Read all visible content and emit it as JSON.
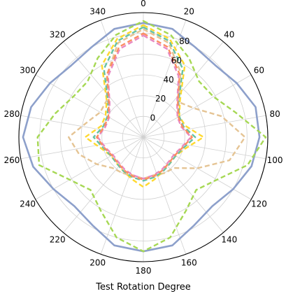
{
  "chart_data": {
    "type": "polar-line",
    "title": "",
    "xlabel": "Test Rotation Degree",
    "ylabel": "",
    "theta_unit": "degrees",
    "theta_zero_location": "top",
    "theta_direction": "clockwise",
    "theta_ticks": [
      0,
      20,
      40,
      60,
      80,
      100,
      120,
      140,
      160,
      180,
      200,
      220,
      240,
      260,
      280,
      300,
      320,
      340
    ],
    "r_ticks": [
      0,
      20,
      40,
      60,
      80
    ],
    "r_tick_labels": [
      "0",
      "20",
      "40",
      "60",
      "80"
    ],
    "rlim": [
      -20,
      100
    ],
    "grid": true,
    "theta": [
      0,
      15,
      30,
      45,
      60,
      75,
      90,
      105,
      120,
      135,
      150,
      165,
      180,
      195,
      210,
      225,
      240,
      255,
      270,
      285,
      300,
      315,
      330,
      345
    ],
    "series": [
      {
        "color": "#8da0cb",
        "style": "solid",
        "values": [
          90,
          88,
          80,
          78,
          84,
          92,
          92,
          88,
          80,
          74,
          78,
          88,
          90,
          88,
          78,
          74,
          80,
          90,
          96,
          92,
          84,
          78,
          80,
          88
        ]
      },
      {
        "color": "#a6d854",
        "style": "dashed",
        "values": [
          92,
          82,
          68,
          56,
          58,
          72,
          98,
          84,
          62,
          52,
          62,
          80,
          90,
          80,
          62,
          52,
          62,
          84,
          82,
          68,
          58,
          56,
          68,
          82
        ]
      },
      {
        "color": "#e5c494",
        "style": "dashed",
        "values": [
          84,
          74,
          52,
          28,
          36,
          58,
          78,
          66,
          40,
          22,
          20,
          18,
          20,
          18,
          20,
          22,
          32,
          44,
          52,
          36,
          28,
          30,
          50,
          74
        ]
      },
      {
        "color": "#ffd92f",
        "style": "dashed",
        "values": [
          88,
          78,
          60,
          30,
          20,
          22,
          38,
          22,
          16,
          16,
          18,
          22,
          28,
          22,
          18,
          16,
          16,
          22,
          36,
          22,
          22,
          30,
          60,
          78
        ]
      },
      {
        "color": "#66c2a5",
        "style": "dashed",
        "values": [
          86,
          76,
          56,
          28,
          20,
          20,
          30,
          20,
          16,
          16,
          18,
          20,
          22,
          20,
          18,
          16,
          16,
          20,
          28,
          20,
          20,
          28,
          56,
          76
        ]
      },
      {
        "color": "#e78ac3",
        "style": "dashed",
        "values": [
          78,
          68,
          48,
          26,
          18,
          18,
          26,
          18,
          14,
          14,
          16,
          18,
          20,
          18,
          16,
          14,
          14,
          18,
          24,
          18,
          18,
          26,
          48,
          68
        ]
      },
      {
        "color": "#fc8d62",
        "style": "dashed",
        "values": [
          80,
          70,
          50,
          27,
          19,
          19,
          27,
          19,
          15,
          15,
          17,
          19,
          21,
          19,
          17,
          15,
          15,
          19,
          25,
          19,
          19,
          27,
          50,
          70
        ]
      }
    ]
  }
}
